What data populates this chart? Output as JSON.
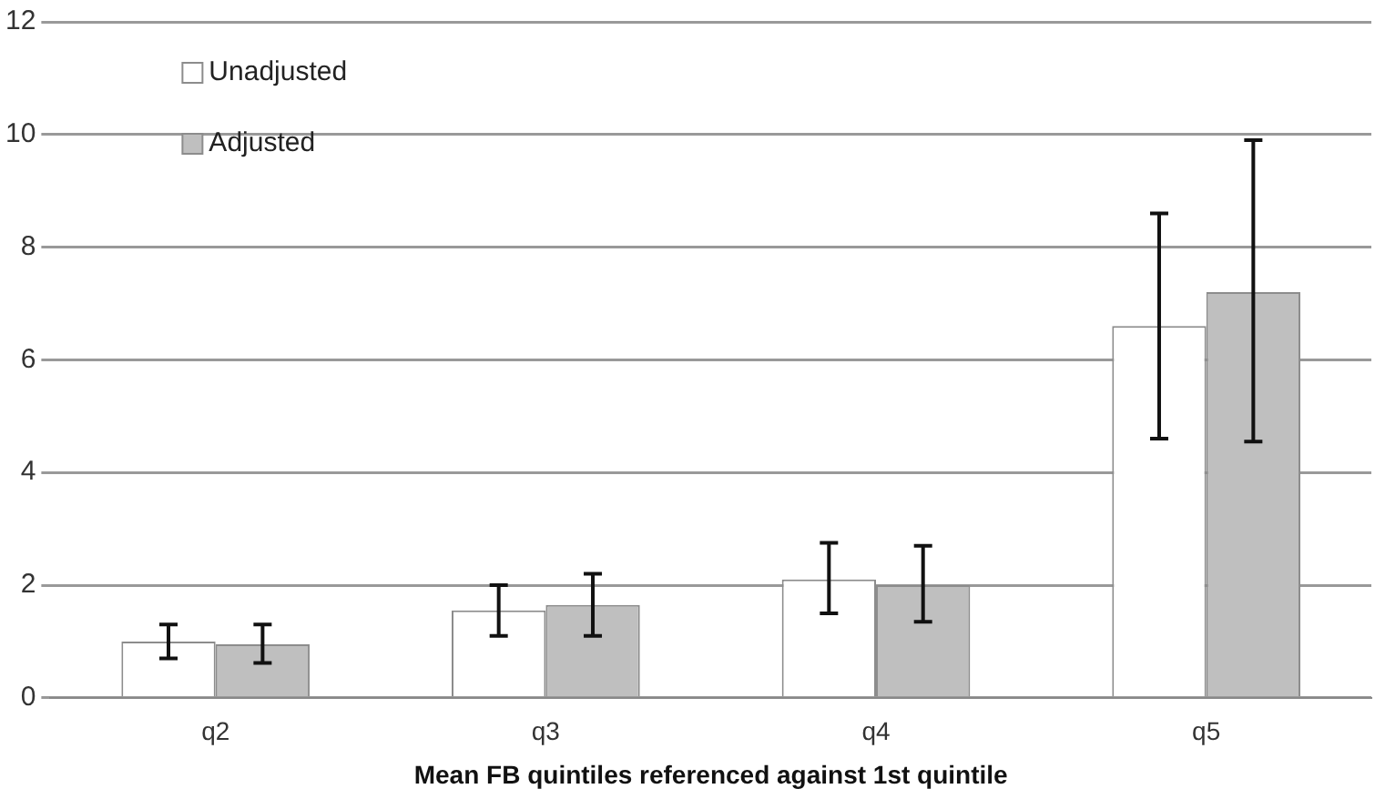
{
  "chart_data": {
    "type": "bar",
    "xlabel": "Mean FB quintiles referenced against 1st quintile",
    "categories": [
      "q2",
      "q3",
      "q4",
      "q5"
    ],
    "series": [
      {
        "name": "Unadjusted",
        "color": "#ffffff",
        "values": [
          1.0,
          1.55,
          2.1,
          6.6
        ],
        "errors": [
          [
            0.7,
            1.3
          ],
          [
            1.1,
            2.0
          ],
          [
            1.5,
            2.75
          ],
          [
            4.6,
            8.6
          ]
        ]
      },
      {
        "name": "Adjusted",
        "color": "#bfbfbf",
        "values": [
          0.95,
          1.65,
          2.0,
          7.2
        ],
        "errors": [
          [
            0.62,
            1.3
          ],
          [
            1.1,
            2.2
          ],
          [
            1.35,
            2.7
          ],
          [
            4.55,
            9.9
          ]
        ]
      }
    ],
    "ylim": [
      0,
      12
    ],
    "yticks": [
      0,
      2,
      4,
      6,
      8,
      10,
      12
    ],
    "grid": "y",
    "legend": "top left"
  }
}
